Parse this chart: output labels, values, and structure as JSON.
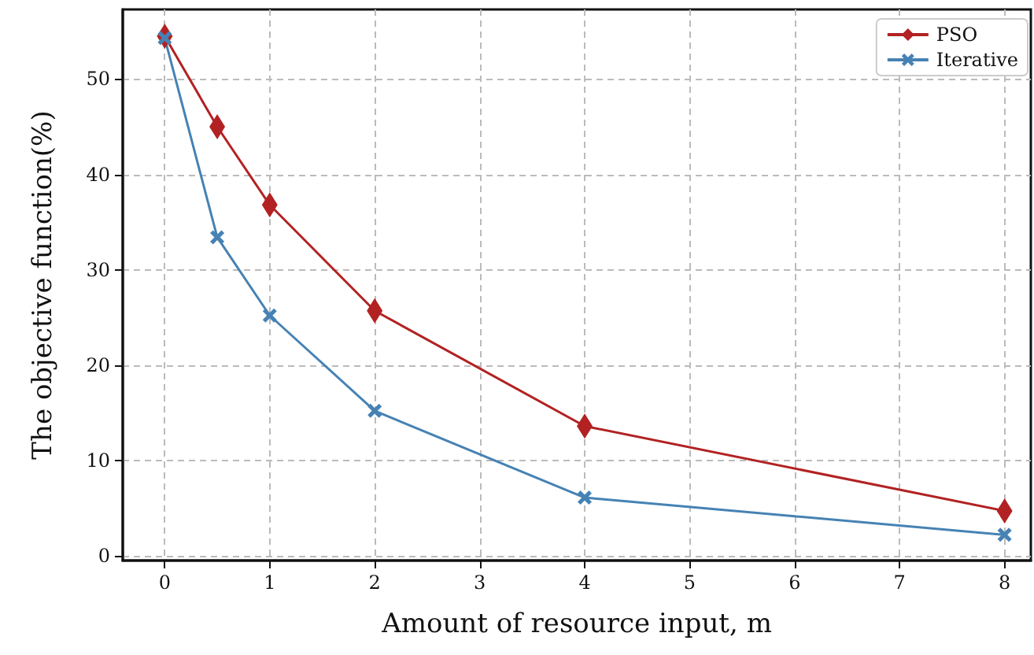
{
  "chart_data": {
    "type": "line",
    "xlabel": "Amount of resource input, m",
    "ylabel": "The objective function(%)",
    "x": [
      0,
      0.5,
      1,
      2,
      4,
      8
    ],
    "series": [
      {
        "name": "PSO",
        "color": "#b22222",
        "marker": "diamond",
        "values": [
          54.5,
          45,
          36.8,
          25.7,
          13.6,
          4.7
        ]
      },
      {
        "name": "Iterative",
        "color": "#4682b4",
        "marker": "cross",
        "values": [
          54.3,
          33.4,
          25.2,
          15.2,
          6.1,
          2.2
        ]
      }
    ],
    "xlim": [
      -0.4,
      8.25
    ],
    "xticks": [
      0,
      1,
      2,
      3,
      4,
      5,
      6,
      7,
      8
    ],
    "ylim": [
      -0.5,
      57.3
    ],
    "yticks": [
      0,
      10,
      20,
      30,
      40,
      50
    ],
    "grid": true,
    "legend": "top right",
    "line_style": "solid"
  }
}
